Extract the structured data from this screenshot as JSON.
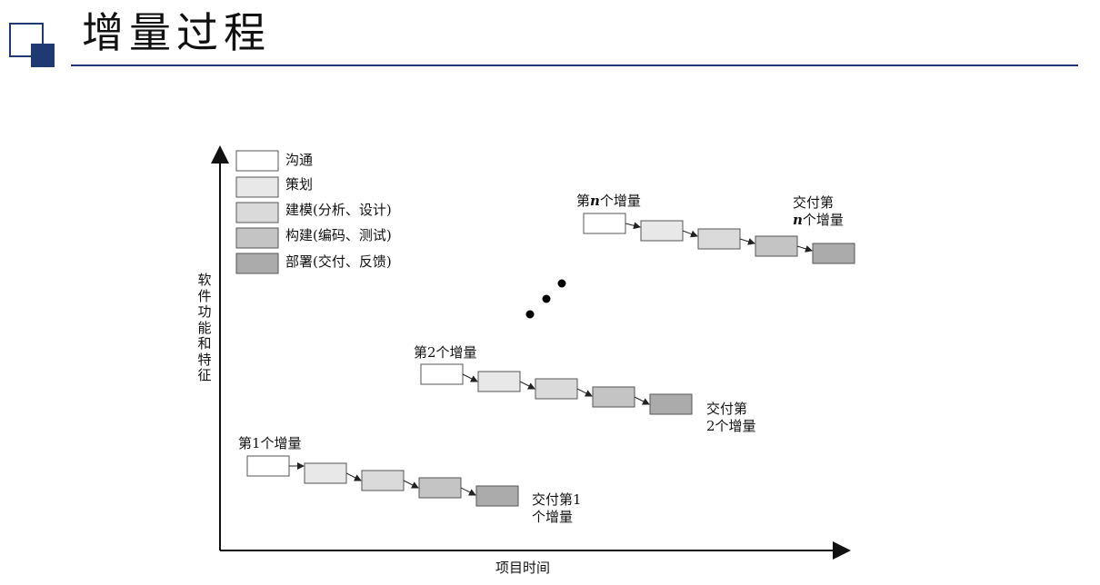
{
  "title": "增量过程",
  "legend": [
    {
      "label": "沟通",
      "color": "#ffffff"
    },
    {
      "label": "策划",
      "color": "#e8e8e8"
    },
    {
      "label": "建模(分析、设计)",
      "color": "#dadada"
    },
    {
      "label": "构建(编码、测试)",
      "color": "#c4c4c4"
    },
    {
      "label": "部署(交付、反馈)",
      "color": "#ababab"
    }
  ],
  "axes": {
    "y_label": "软件功能和特征",
    "x_label": "项目时间"
  },
  "increments": [
    {
      "label": "第1个增量",
      "delivery_line1": "交付第1",
      "delivery_line2": "个增量"
    },
    {
      "label": "第2个增量",
      "delivery_line1": "交付第",
      "delivery_line2": "2个增量"
    },
    {
      "label_pre": "第",
      "label_n": "n",
      "label_post": "个增量",
      "delivery_line1": "交付第",
      "delivery_line2_n": "n",
      "delivery_line2_post": "个增量"
    }
  ]
}
